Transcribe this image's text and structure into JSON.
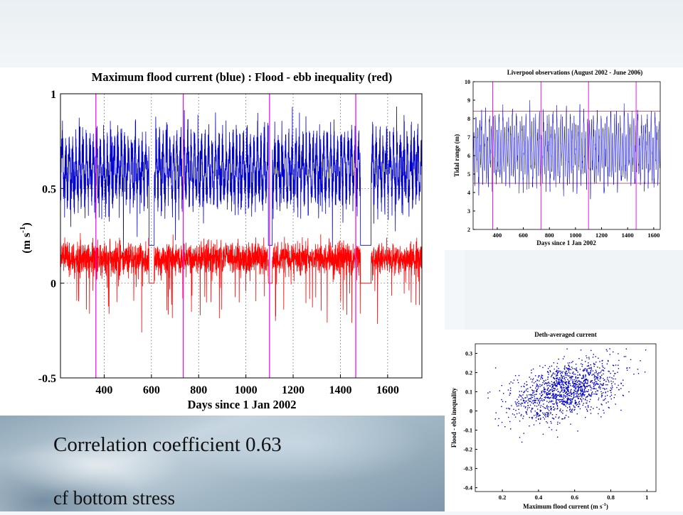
{
  "captions": {
    "line1": "Correlation coefficient 0.63",
    "line2": "cf bottom stress"
  },
  "colors": {
    "flood": "#0000cc",
    "inequality": "#ff0000",
    "magenta": "#ee00ee",
    "hline": "#aa3355"
  },
  "chart_data": [
    {
      "type": "line",
      "title": "Maximum flood current (blue) : Flood - ebb inequality (red)",
      "xlabel": "Days since 1 Jan 2002",
      "ylabel_main": "(m s",
      "ylabel_sup": "-1",
      "ylabel_end": ")",
      "xlim": [
        215,
        1745
      ],
      "ylim": [
        -0.5,
        1
      ],
      "xticks": [
        400,
        600,
        800,
        1000,
        1200,
        1400,
        1600
      ],
      "yticks": [
        1,
        0.5,
        0,
        -0.5
      ],
      "dotted_gridlines_x": [
        400,
        600,
        800,
        1000,
        1200,
        1400,
        1600
      ],
      "dotted_gridlines_y": [
        0.5,
        0
      ],
      "vertical_markers": [
        365,
        735,
        1100,
        1465
      ],
      "series": [
        {
          "color": "blue",
          "mean": 0.6,
          "amplitude": 0.22,
          "gaps": [
            [
              590,
              612
            ],
            [
              1095,
              1112
            ],
            [
              1485,
              1530
            ]
          ],
          "gap_value": 0.2
        },
        {
          "color": "red",
          "mean": 0.13,
          "amplitude": 0.06,
          "gaps": [
            [
              590,
              612
            ],
            [
              1095,
              1112
            ],
            [
              1485,
              1530
            ]
          ],
          "gap_value": 0.0
        }
      ]
    },
    {
      "type": "line",
      "title": "Liverpool observations (August 2002 - June 2006)",
      "xlabel": "Days since 1 Jan 2002",
      "ylabel": "Tidal range (m)",
      "xlim": [
        215,
        1650
      ],
      "ylim": [
        2,
        10
      ],
      "xticks": [
        400,
        600,
        800,
        1000,
        1200,
        1400,
        1600
      ],
      "yticks": [
        2,
        3,
        4,
        5,
        6,
        7,
        8,
        9,
        10
      ],
      "horizontal_lines": [
        8.4,
        4.5
      ],
      "vertical_markers": [
        365,
        735,
        1100,
        1465
      ],
      "series": [
        {
          "color": "blue",
          "mean": 6.3,
          "amplitude": 2.1
        }
      ]
    },
    {
      "type": "scatter",
      "title": "Deth-averaged current",
      "xlabel": "Maximum flood current (m s",
      "xlabel_sup": "-1",
      "xlabel_end": ")",
      "ylabel": "Flood - ebb inequality",
      "xlim": [
        0.05,
        1.05
      ],
      "ylim": [
        -0.42,
        0.35
      ],
      "xticks": [
        0.2,
        0.4,
        0.6,
        0.8,
        1
      ],
      "yticks": [
        0.3,
        0.2,
        0.1,
        0,
        -0.1,
        -0.2,
        -0.3,
        -0.4
      ],
      "series": [
        {
          "color": "blue",
          "center_x": 0.55,
          "spread_x": 0.15,
          "slope": 0.22,
          "intercept": -0.01,
          "noise": 0.07,
          "n_points": 1400
        }
      ]
    }
  ]
}
